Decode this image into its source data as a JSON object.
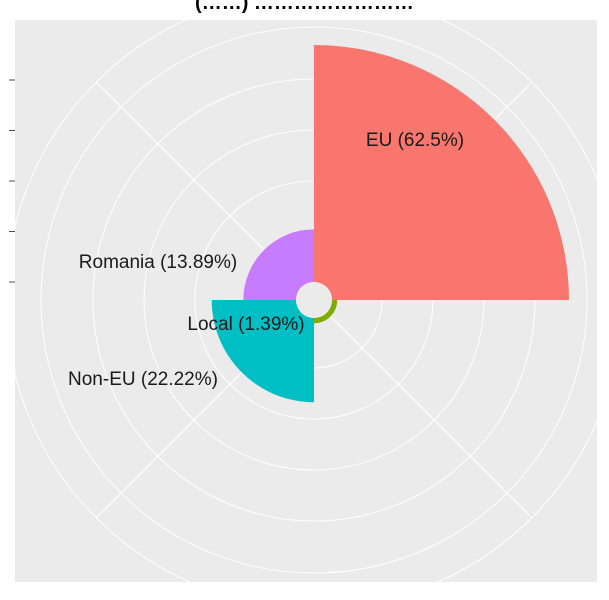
{
  "chart_data": {
    "type": "pie",
    "subtype": "polar-area (coxcomb)",
    "title": "(……) ……………………",
    "categories": [
      "EU",
      "Local",
      "Non-EU",
      "Romania"
    ],
    "values": [
      62.5,
      1.39,
      22.22,
      13.89
    ],
    "labels": [
      "EU (62.5%)",
      "Local (1.39%)",
      "Non-EU (22.22%)",
      "Romania (13.89%)"
    ],
    "colors": [
      "#F8766D",
      "#7CAE00",
      "#00BFC4",
      "#C77CFF"
    ],
    "radial_axis": {
      "range": [
        0,
        62.5
      ],
      "tick_labels_visible": false
    },
    "grid": true,
    "panel_background": "#EBEBEB",
    "legend": "none"
  }
}
